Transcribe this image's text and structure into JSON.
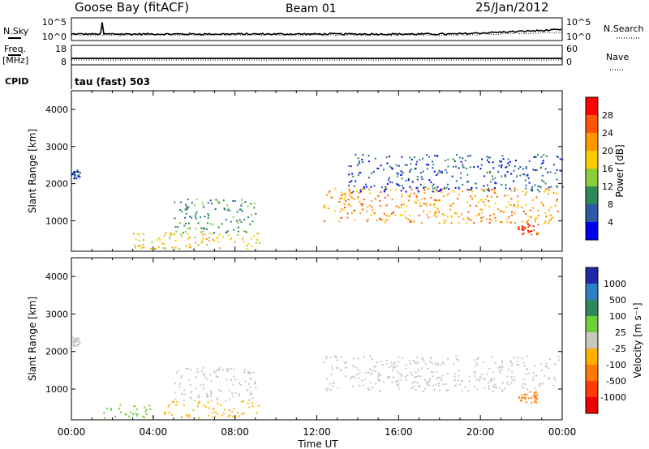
{
  "header": {
    "station": "Goose Bay (fitACF)",
    "beam": "Beam 01",
    "date": "25/Jan/2012"
  },
  "top_panels": {
    "nsky_label": "N.Sky",
    "nsky_ticks": [
      "10^5",
      "10^0"
    ],
    "nsearch_label": "N.Search",
    "nsearch_ticks": [
      "10^5",
      "10^0"
    ],
    "freq_label": "Freq.",
    "freq_unit": "[MHz]",
    "freq_ticks": [
      "18",
      "8"
    ],
    "nave_label": "Nave",
    "nave_ticks": [
      "60",
      "0"
    ],
    "cpid_label": "CPID",
    "cpid_value": "tau (fast) 503"
  },
  "x_axis": {
    "label": "Time UT",
    "ticks": [
      "00:00",
      "04:00",
      "08:00",
      "12:00",
      "16:00",
      "20:00",
      "00:00"
    ]
  },
  "colorbar_power": {
    "label": "Power [dB]",
    "ticks": [
      "28",
      "24",
      "20",
      "16",
      "12",
      "8",
      "4"
    ],
    "colors": [
      "#ff0000",
      "#ff5500",
      "#ff9900",
      "#ffcc00",
      "#8fcc3a",
      "#2e8b57",
      "#2a5aa8",
      "#0000ee"
    ]
  },
  "colorbar_velocity": {
    "label": "Velocity [m s⁻¹]",
    "ticks": [
      "1000",
      "500",
      "100",
      "25",
      "-25",
      "-100",
      "-500",
      "-1000"
    ],
    "colors": [
      "#1f2aa8",
      "#2f7fc6",
      "#2e8b57",
      "#6fce3a",
      "#c8c8c0",
      "#ffb000",
      "#ff7a00",
      "#ff3b00",
      "#ee0000"
    ]
  },
  "chart_data": [
    {
      "type": "heatmap",
      "title": "Power",
      "xlabel": "",
      "ylabel": "Slant Range [km]",
      "xlim": [
        0,
        24
      ],
      "ylim": [
        180,
        4500
      ],
      "yticks": [
        1000,
        2000,
        3000,
        4000
      ],
      "colorbar": "Power [dB]",
      "features": [
        {
          "t0": 0.0,
          "t1": 0.4,
          "r0": 2150,
          "r1": 2400,
          "value": 6
        },
        {
          "t0": 3.0,
          "t1": 9.3,
          "r0": 250,
          "r1": 700,
          "value": 18
        },
        {
          "t0": 5.0,
          "t1": 9.0,
          "r0": 700,
          "r1": 1600,
          "value": 10
        },
        {
          "t0": 12.3,
          "t1": 23.8,
          "r0": 950,
          "r1": 1900,
          "value": 22
        },
        {
          "t0": 13.5,
          "t1": 24.0,
          "r0": 1800,
          "r1": 2800,
          "value": 6
        },
        {
          "t0": 21.8,
          "t1": 22.8,
          "r0": 650,
          "r1": 950,
          "value": 28
        }
      ]
    },
    {
      "type": "heatmap",
      "title": "Velocity",
      "xlabel": "Time UT",
      "ylabel": "Slant Range [km]",
      "xlim": [
        0,
        24
      ],
      "ylim": [
        180,
        4500
      ],
      "yticks": [
        1000,
        2000,
        3000,
        4000
      ],
      "colorbar": "Velocity [m s⁻¹]",
      "features": [
        {
          "t0": 0.0,
          "t1": 0.4,
          "r0": 2150,
          "r1": 2400,
          "value": 0
        },
        {
          "t0": 1.5,
          "t1": 4.0,
          "r0": 250,
          "r1": 600,
          "value": 60
        },
        {
          "t0": 4.5,
          "t1": 9.2,
          "r0": 250,
          "r1": 700,
          "value": -80
        },
        {
          "t0": 5.0,
          "t1": 9.0,
          "r0": 700,
          "r1": 1600,
          "value": 0
        },
        {
          "t0": 12.3,
          "t1": 23.8,
          "r0": 950,
          "r1": 1900,
          "value": 0
        },
        {
          "t0": 21.8,
          "t1": 22.8,
          "r0": 650,
          "r1": 950,
          "value": -300
        }
      ]
    }
  ]
}
